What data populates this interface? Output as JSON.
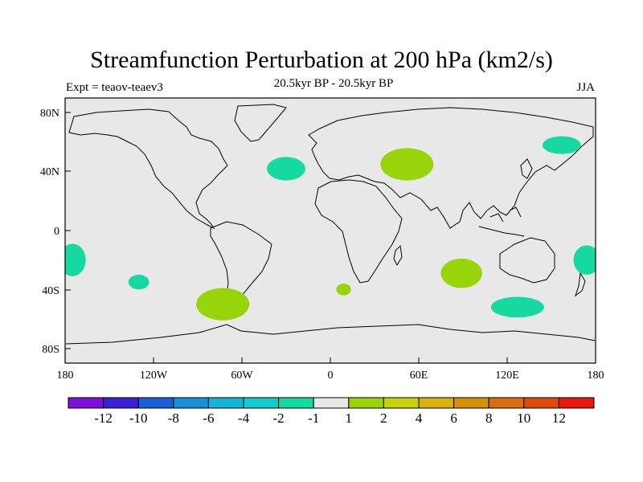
{
  "title": "Streamfunction Perturbation at 200 hPa (km2/s)",
  "subtitle_left": "Expt = teaov-teaev3",
  "subtitle_center": "20.5kyr BP - 20.5kyr BP",
  "subtitle_right": "JJA",
  "axes": {
    "lat_ticks": [
      "80N",
      "40N",
      "0",
      "40S",
      "80S"
    ],
    "lon_ticks": [
      "180",
      "120W",
      "60W",
      "0",
      "60E",
      "120E",
      "180"
    ]
  },
  "colorbar": {
    "colors": [
      "#7c12d9",
      "#3a1fd6",
      "#1a5fd8",
      "#1a8fd6",
      "#14b4d6",
      "#12cccc",
      "#16d9a0",
      "#e8e8e8",
      "#97d40a",
      "#c8d10a",
      "#d7b20a",
      "#d4900a",
      "#d86e0c",
      "#df4a0c",
      "#e8180c"
    ],
    "labels": [
      "-12",
      "-10",
      "-8",
      "-6",
      "-4",
      "-2",
      "-1",
      "1",
      "2",
      "4",
      "6",
      "8",
      "10",
      "12"
    ]
  },
  "anomalies": [
    {
      "name": "north-atlantic-negative",
      "lon": -30,
      "lat": 42,
      "rlon": 13,
      "rlat": 8,
      "sign": "negative"
    },
    {
      "name": "caspian-positive",
      "lon": 52,
      "lat": 45,
      "rlon": 18,
      "rlat": 11,
      "sign": "positive"
    },
    {
      "name": "kamchatka-negative",
      "lon": 157,
      "lat": 58,
      "rlon": 13,
      "rlat": 6,
      "sign": "negative"
    },
    {
      "name": "east-pacific-negative",
      "lon": -175,
      "lat": -20,
      "rlon": 9,
      "rlat": 11,
      "sign": "negative"
    },
    {
      "name": "south-pacific-negative",
      "lon": -130,
      "lat": -35,
      "rlon": 7,
      "rlat": 5,
      "sign": "negative"
    },
    {
      "name": "patagonia-positive",
      "lon": -73,
      "lat": -50,
      "rlon": 18,
      "rlat": 11,
      "sign": "positive"
    },
    {
      "name": "south-atlantic-positive",
      "lon": 9,
      "lat": -40,
      "rlon": 5,
      "rlat": 4,
      "sign": "positive"
    },
    {
      "name": "indian-ocean-positive",
      "lon": 89,
      "lat": -29,
      "rlon": 14,
      "rlat": 10,
      "sign": "positive"
    },
    {
      "name": "south-of-australia-negative",
      "lon": 127,
      "lat": -52,
      "rlon": 18,
      "rlat": 7,
      "sign": "negative"
    },
    {
      "name": "tasman-negative",
      "lon": 174,
      "lat": -20,
      "rlon": 9,
      "rlat": 10,
      "sign": "negative"
    }
  ]
}
